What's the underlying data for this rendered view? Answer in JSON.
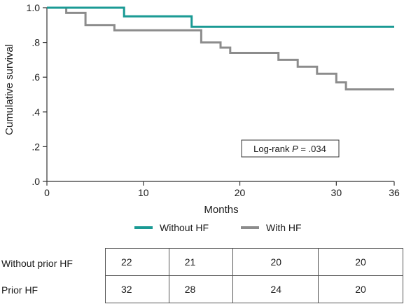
{
  "chart_data": {
    "type": "line",
    "ylabel": "Cumulative survival",
    "xlabel": "Months",
    "xlim": [
      0,
      36
    ],
    "ylim": [
      0,
      1.0
    ],
    "x_ticks": [
      "0",
      "10",
      "20",
      "30",
      "36"
    ],
    "x_tick_values": [
      0,
      10,
      20,
      30,
      36
    ],
    "y_ticks": [
      ".0",
      ".2",
      ".4",
      ".6",
      ".8",
      "1.0"
    ],
    "y_tick_values": [
      0,
      0.2,
      0.4,
      0.6,
      0.8,
      1.0
    ],
    "grid": false,
    "step": true,
    "series": [
      {
        "name": "Without HF",
        "color": "#1a9a94",
        "points": [
          [
            0,
            1.0
          ],
          [
            8,
            1.0
          ],
          [
            8,
            0.95
          ],
          [
            15,
            0.95
          ],
          [
            15,
            0.89
          ],
          [
            36,
            0.89
          ]
        ]
      },
      {
        "name": "With HF",
        "color": "#8c8c8c",
        "points": [
          [
            0,
            1.0
          ],
          [
            2,
            1.0
          ],
          [
            2,
            0.97
          ],
          [
            4,
            0.97
          ],
          [
            4,
            0.9
          ],
          [
            7,
            0.9
          ],
          [
            7,
            0.87
          ],
          [
            16,
            0.87
          ],
          [
            16,
            0.8
          ],
          [
            18,
            0.8
          ],
          [
            18,
            0.77
          ],
          [
            19,
            0.77
          ],
          [
            19,
            0.74
          ],
          [
            24,
            0.74
          ],
          [
            24,
            0.7
          ],
          [
            26,
            0.7
          ],
          [
            26,
            0.66
          ],
          [
            28,
            0.66
          ],
          [
            28,
            0.62
          ],
          [
            30,
            0.62
          ],
          [
            30,
            0.57
          ],
          [
            31,
            0.57
          ],
          [
            31,
            0.53
          ],
          [
            36,
            0.53
          ]
        ]
      }
    ],
    "annotation": {
      "prefix": "Log-rank ",
      "italic": "P",
      "suffix": " = .034"
    },
    "legend": [
      "Without HF",
      "With HF"
    ],
    "legend_position": "bottom-center"
  },
  "risk_table": {
    "rows": [
      {
        "label": "Without prior HF",
        "values": [
          "22",
          "21",
          "20",
          "20"
        ]
      },
      {
        "label": "Prior HF",
        "values": [
          "32",
          "28",
          "24",
          "20"
        ]
      }
    ]
  }
}
